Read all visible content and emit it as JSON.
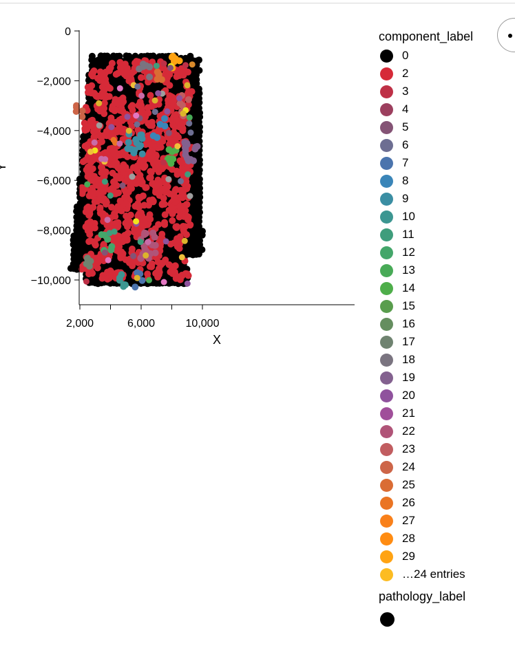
{
  "chart_data": {
    "type": "scatter",
    "xlabel": "X",
    "ylabel": "Y",
    "x_ticks": [
      2000,
      6000,
      10000
    ],
    "x_tick_labels": [
      "2,000",
      "6,000",
      "10,000"
    ],
    "y_ticks": [
      0,
      -2000,
      -4000,
      -6000,
      -8000,
      -10000
    ],
    "y_tick_labels": [
      "0",
      "−2,000",
      "−4,000",
      "−6,000",
      "−8,000",
      "−10,000"
    ],
    "xlim": [
      0,
      10000
    ],
    "ylim": [
      -11000,
      0
    ],
    "grid": false,
    "legend_position": "right",
    "point_region": {
      "x_range": [
        1400,
        10000
      ],
      "y_range": [
        -10200,
        -1000
      ],
      "dominant_series": "0",
      "secondary_series": "2"
    },
    "clusters": [
      {
        "label": "9",
        "x": 5600,
        "y": -4500,
        "spread": 500,
        "count": 14
      },
      {
        "label": "22",
        "x": 6400,
        "y": -8600,
        "spread": 550,
        "count": 22
      },
      {
        "label": "19",
        "x": 9300,
        "y": -4900,
        "spread": 450,
        "count": 14
      },
      {
        "label": "14",
        "x": 8000,
        "y": -5000,
        "spread": 350,
        "count": 8
      },
      {
        "label": "17",
        "x": 2600,
        "y": -9300,
        "spread": 250,
        "count": 5
      },
      {
        "label": "24",
        "x": 2000,
        "y": -3200,
        "spread": 250,
        "count": 5
      },
      {
        "label": "29",
        "x": 8300,
        "y": -1200,
        "spread": 300,
        "count": 6
      },
      {
        "label": "18",
        "x": 6200,
        "y": -1600,
        "spread": 350,
        "count": 6
      },
      {
        "label": "25",
        "x": 7400,
        "y": -1800,
        "spread": 350,
        "count": 5
      },
      {
        "label": "10",
        "x": 4800,
        "y": -9900,
        "spread": 400,
        "count": 6
      },
      {
        "label": "7",
        "x": 5800,
        "y": -10000,
        "spread": 300,
        "count": 5
      },
      {
        "label": "12",
        "x": 3700,
        "y": -8500,
        "spread": 400,
        "count": 6
      },
      {
        "label": "23",
        "x": 8800,
        "y": -3000,
        "spread": 450,
        "count": 6
      },
      {
        "label": "8",
        "x": 7200,
        "y": -3900,
        "spread": 400,
        "count": 5
      }
    ]
  },
  "legend": {
    "title": "component_label",
    "items": [
      {
        "label": "0",
        "color": "#000000"
      },
      {
        "label": "2",
        "color": "#d62a38"
      },
      {
        "label": "3",
        "color": "#be3046"
      },
      {
        "label": "4",
        "color": "#9c3f5e"
      },
      {
        "label": "5",
        "color": "#845375"
      },
      {
        "label": "6",
        "color": "#6d6e92"
      },
      {
        "label": "7",
        "color": "#4b74ad"
      },
      {
        "label": "8",
        "color": "#3a85b8"
      },
      {
        "label": "9",
        "color": "#3b8ea3"
      },
      {
        "label": "10",
        "color": "#3c9691"
      },
      {
        "label": "11",
        "color": "#3f9d7c"
      },
      {
        "label": "12",
        "color": "#44a66a"
      },
      {
        "label": "13",
        "color": "#48aa57"
      },
      {
        "label": "14",
        "color": "#4eae4a"
      },
      {
        "label": "15",
        "color": "#599d4d"
      },
      {
        "label": "16",
        "color": "#658e5f"
      },
      {
        "label": "17",
        "color": "#6f8370"
      },
      {
        "label": "18",
        "color": "#7a7480"
      },
      {
        "label": "19",
        "color": "#83618f"
      },
      {
        "label": "20",
        "color": "#8f529d"
      },
      {
        "label": "21",
        "color": "#a04f9a"
      },
      {
        "label": "22",
        "color": "#b05478"
      },
      {
        "label": "23",
        "color": "#c15d60"
      },
      {
        "label": "24",
        "color": "#cd6548"
      },
      {
        "label": "25",
        "color": "#da6c34"
      },
      {
        "label": "26",
        "color": "#ea7423"
      },
      {
        "label": "27",
        "color": "#f9801a"
      },
      {
        "label": "28",
        "color": "#ff8c12"
      },
      {
        "label": "29",
        "color": "#ffa313"
      },
      {
        "label": "…24 entries",
        "color": "#fcbc22"
      }
    ]
  },
  "legend2": {
    "title": "pathology_label",
    "color": "#000000"
  },
  "extra_colors": [
    "#f1e21e",
    "#e377c2",
    "#f0c03a",
    "#d98a2b",
    "#9e9e9e",
    "#c96ba8",
    "#dcb42c"
  ],
  "tool": {
    "icon": "dot-menu-icon"
  }
}
